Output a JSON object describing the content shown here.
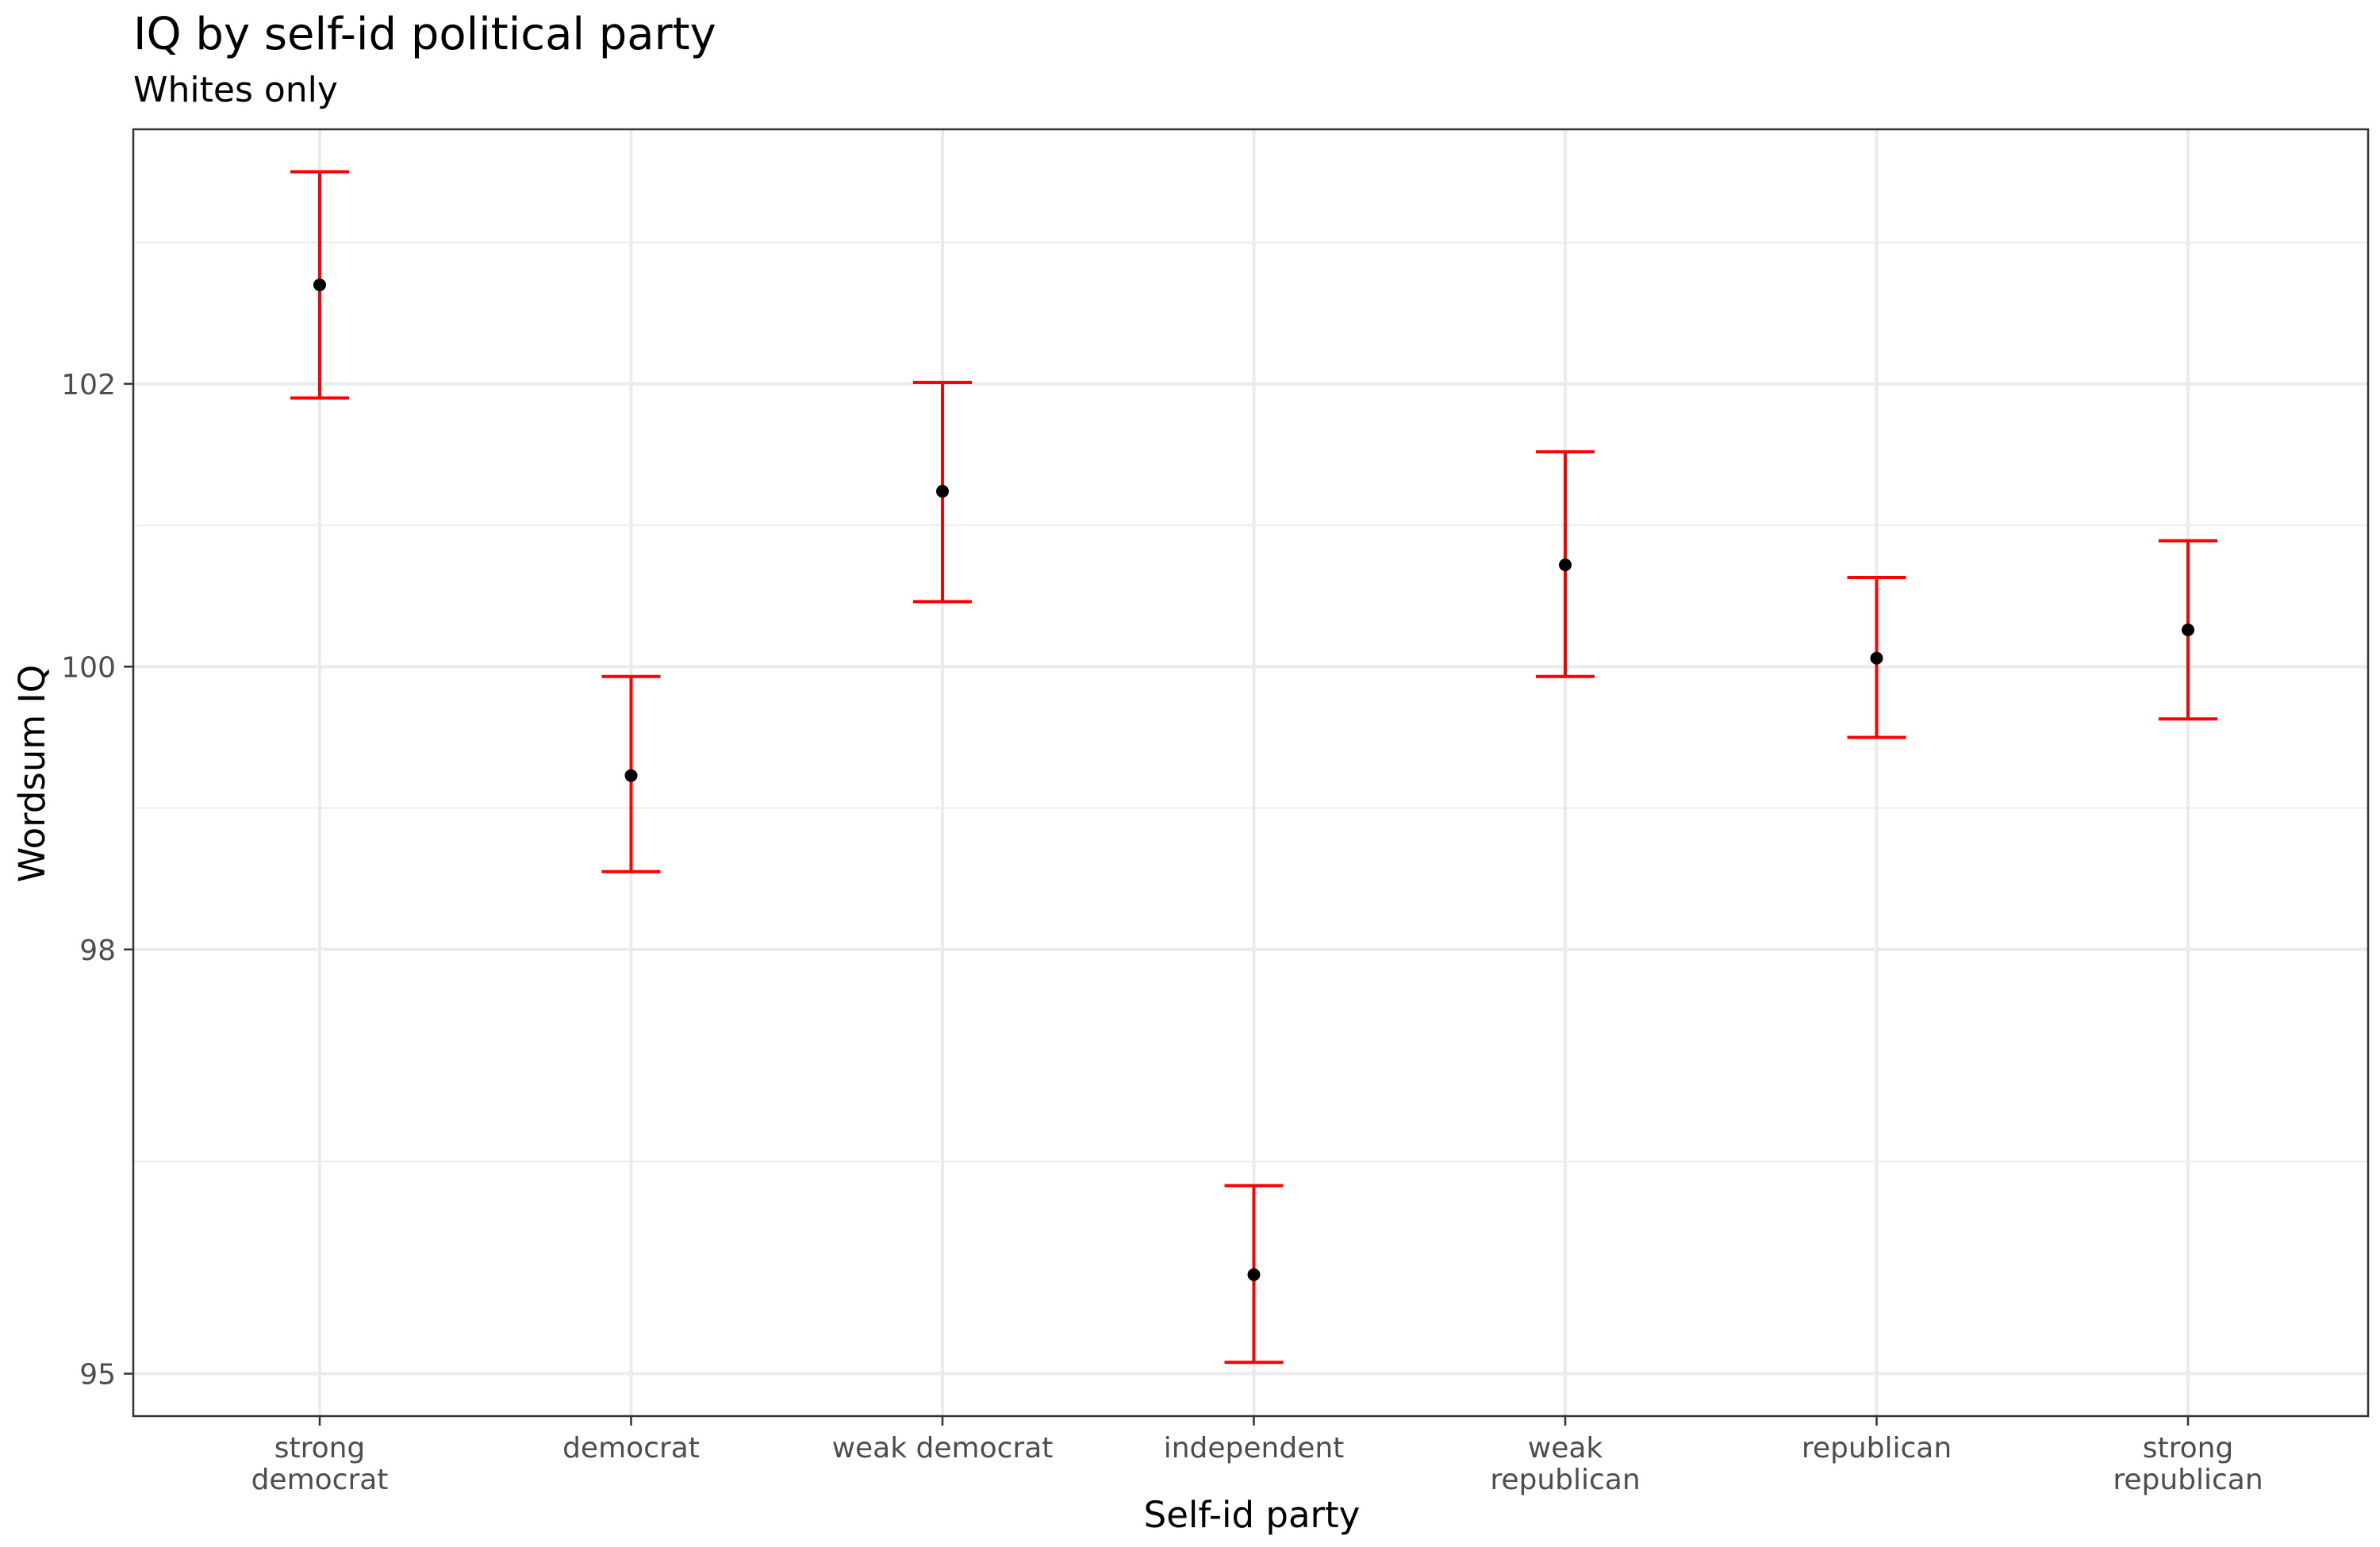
{
  "chart_data": {
    "type": "scatter",
    "title": "IQ by self-id political party",
    "subtitle": "Whites only",
    "xlabel": "Self-id party",
    "ylabel": "Wordsum IQ",
    "categories": [
      [
        "strong",
        "democrat"
      ],
      [
        "democrat"
      ],
      [
        "weak democrat"
      ],
      [
        "independent"
      ],
      [
        "weak",
        "republican"
      ],
      [
        "republican"
      ],
      [
        "strong",
        "republican"
      ]
    ],
    "series": [
      {
        "mean": [
          102.7,
          99.23,
          101.24,
          95.7,
          100.72,
          100.06,
          100.26
        ],
        "lower": [
          101.9,
          98.55,
          100.46,
          95.08,
          99.93,
          99.5,
          99.63
        ],
        "upper": [
          103.5,
          99.93,
          102.01,
          96.33,
          101.52,
          100.63,
          100.89
        ]
      }
    ],
    "y_ticks": [
      95,
      98,
      100,
      102
    ],
    "ylim": [
      94.7,
      103.8
    ],
    "grid": true,
    "colors": {
      "errorbar": "#ff0000",
      "point": "#000000",
      "grid": "#ebebeb",
      "panel_border": "#333333"
    }
  }
}
